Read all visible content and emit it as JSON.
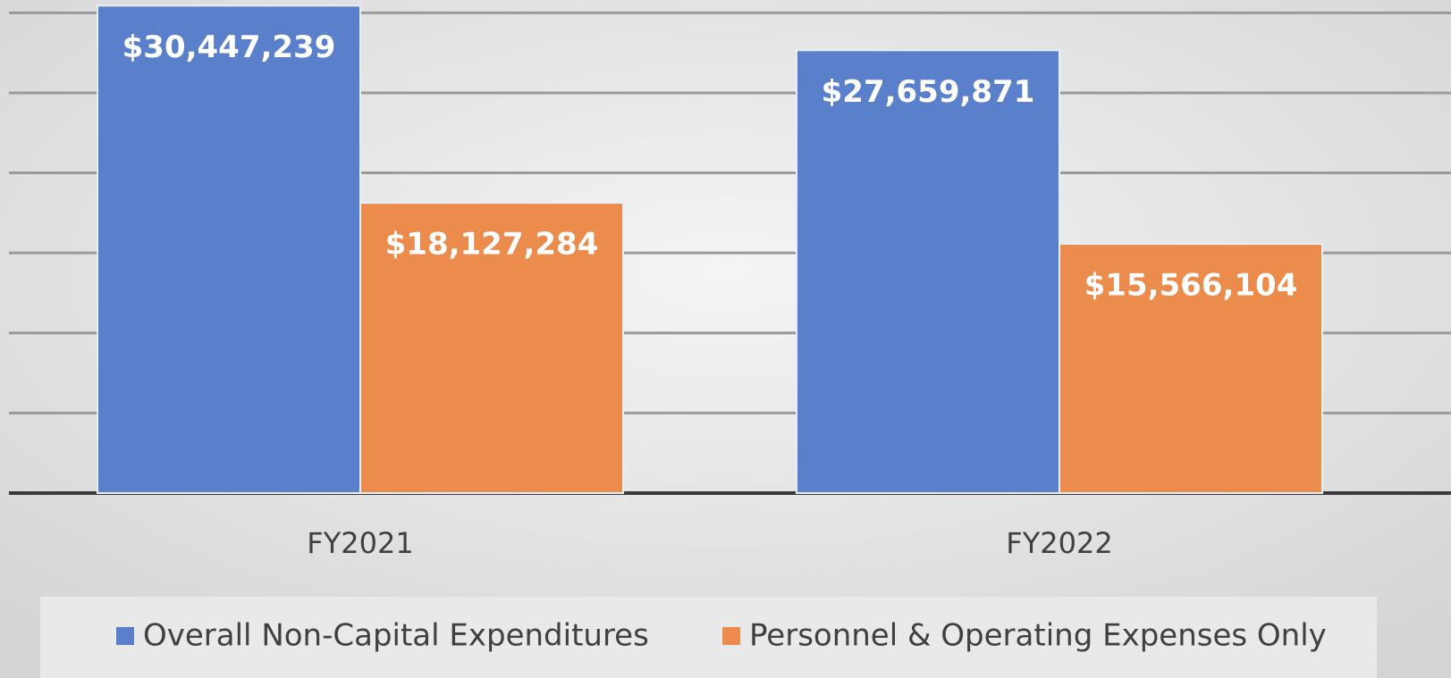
{
  "chart_data": {
    "type": "bar",
    "categories": [
      "FY2021",
      "FY2022"
    ],
    "series": [
      {
        "name": "Overall Non-Capital Expenditures",
        "color": "#5b80cb",
        "values": [
          30447239,
          27659871
        ],
        "value_labels": [
          "$30,447,239",
          "$27,659,871"
        ]
      },
      {
        "name": "Personnel & Operating Expenses Only",
        "color": "#eb8b4c",
        "values": [
          18127284,
          15566104
        ],
        "value_labels": [
          "$18,127,284",
          "$15,566,104"
        ]
      }
    ],
    "ylim": [
      0,
      30800000
    ],
    "yticks": [
      0,
      5000000,
      10000000,
      15000000,
      20000000,
      25000000,
      30000000
    ],
    "grid": true,
    "legend": "bottom"
  }
}
